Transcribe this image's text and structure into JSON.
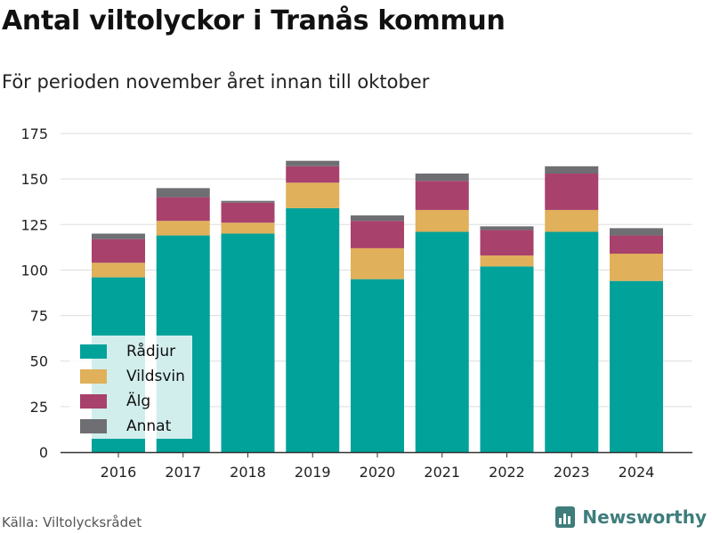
{
  "header": {
    "title": "Antal viltolyckor i Tranås kommun",
    "subtitle": "För perioden november året innan till oktober"
  },
  "footer": {
    "source": "Källa: Viltolycksrådet",
    "brand": "Newsworthy",
    "brand_icon": "bar-chart-logo-icon"
  },
  "colors": {
    "Rådjur": "#00a29a",
    "Vildsvin": "#e0b05a",
    "Älg": "#a8416c",
    "Annat": "#6e6e73",
    "grid": "#dddddd",
    "axis": "#333333"
  },
  "chart_data": {
    "type": "bar",
    "stacked": true,
    "categories": [
      "2016",
      "2017",
      "2018",
      "2019",
      "2020",
      "2021",
      "2022",
      "2023",
      "2024"
    ],
    "series": [
      {
        "name": "Rådjur",
        "values": [
          96,
          119,
          120,
          134,
          95,
          121,
          102,
          121,
          94
        ]
      },
      {
        "name": "Vildsvin",
        "values": [
          8,
          8,
          6,
          14,
          17,
          12,
          6,
          12,
          15
        ]
      },
      {
        "name": "Älg",
        "values": [
          13,
          13,
          11,
          9,
          15,
          16,
          14,
          20,
          10
        ]
      },
      {
        "name": "Annat",
        "values": [
          3,
          5,
          1,
          3,
          3,
          4,
          2,
          4,
          4
        ]
      }
    ],
    "yticks": [
      0,
      25,
      50,
      75,
      100,
      125,
      150,
      175
    ],
    "ylim": [
      0,
      175
    ],
    "grid": true,
    "legend_position": "bottom-left"
  }
}
